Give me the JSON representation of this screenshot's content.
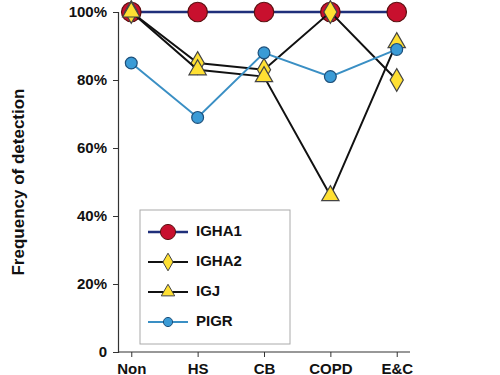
{
  "chart_data": {
    "type": "line",
    "y_label": "Frequency of detection",
    "categories": [
      "Non",
      "HS",
      "CB",
      "COPD",
      "E&C"
    ],
    "series": [
      {
        "name": "IGHA1",
        "color": "#1f2f7a",
        "marker": "circle",
        "values": [
          100,
          100,
          100,
          100,
          100
        ]
      },
      {
        "name": "IGHA2",
        "color": "#111111",
        "marker": "diamond",
        "values": [
          100,
          85,
          83,
          100,
          80
        ]
      },
      {
        "name": "IGJ",
        "color": "#111111",
        "marker": "triangle",
        "values": [
          100,
          83,
          81,
          46,
          91
        ]
      },
      {
        "name": "PIGR",
        "color": "#3a8fc4",
        "marker": "circle",
        "values": [
          85,
          69,
          88,
          81,
          89
        ]
      }
    ],
    "ylim": [
      0,
      100
    ],
    "yticks": [
      0,
      {
        "value": 20,
        "label": "20%"
      },
      {
        "value": 40,
        "label": "40%"
      },
      {
        "value": 60,
        "label": "60%"
      },
      {
        "value": 80,
        "label": "80%"
      },
      {
        "value": 100,
        "label": "100%"
      }
    ],
    "legend": "lower left",
    "grid": false
  }
}
